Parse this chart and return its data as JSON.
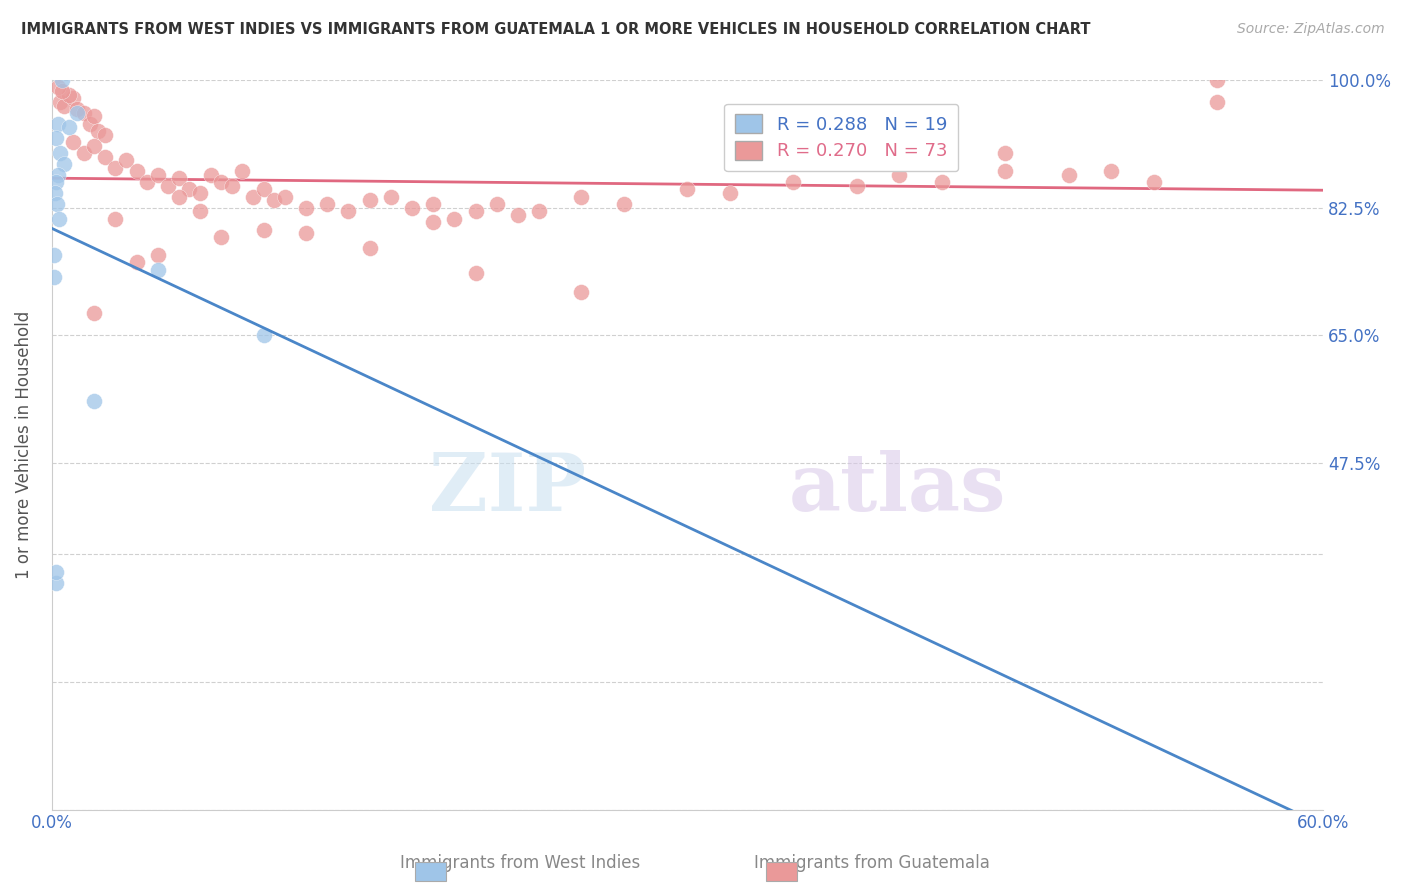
{
  "title": "IMMIGRANTS FROM WEST INDIES VS IMMIGRANTS FROM GUATEMALA 1 OR MORE VEHICLES IN HOUSEHOLD CORRELATION CHART",
  "source": "Source: ZipAtlas.com",
  "ylabel": "1 or more Vehicles in Household",
  "xmin": 0.0,
  "xmax": 60.0,
  "ymin": 0.0,
  "ymax": 100.0,
  "ytick_positions": [
    0.0,
    17.5,
    35.0,
    47.5,
    65.0,
    82.5,
    100.0
  ],
  "ytick_labels_right": [
    "",
    "",
    "",
    "47.5%",
    "65.0%",
    "82.5%",
    "100.0%"
  ],
  "legend_blue_label": "R = 0.288   N = 19",
  "legend_pink_label": "R = 0.270   N = 73",
  "blue_color": "#9fc5e8",
  "pink_color": "#ea9999",
  "blue_line_color": "#4a86c8",
  "pink_line_color": "#e06880",
  "watermark_zip": "ZIP",
  "watermark_atlas": "atlas",
  "bottom_label_blue": "Immigrants from West Indies",
  "bottom_label_pink": "Immigrants from Guatemala",
  "blue_dots_x": [
    0.5,
    0.3,
    0.8,
    1.2,
    0.2,
    0.4,
    0.6,
    0.3,
    0.2,
    0.15,
    0.25,
    0.35,
    0.1,
    0.1,
    10.0,
    5.0,
    2.0,
    0.2,
    0.2
  ],
  "blue_dots_y": [
    100.0,
    94.0,
    93.5,
    95.5,
    92.0,
    90.0,
    88.5,
    87.0,
    86.0,
    84.5,
    83.0,
    81.0,
    76.0,
    73.0,
    65.0,
    74.0,
    56.0,
    31.0,
    32.5
  ],
  "pink_dots_x": [
    0.4,
    0.6,
    1.0,
    1.2,
    1.5,
    1.8,
    2.0,
    2.2,
    2.5,
    0.8,
    0.3,
    0.5,
    1.0,
    1.5,
    2.0,
    2.5,
    3.0,
    3.5,
    4.0,
    4.5,
    5.0,
    5.5,
    6.0,
    6.5,
    7.0,
    7.5,
    8.0,
    8.5,
    9.0,
    9.5,
    10.0,
    10.5,
    11.0,
    12.0,
    13.0,
    14.0,
    15.0,
    16.0,
    17.0,
    18.0,
    19.0,
    20.0,
    21.0,
    22.0,
    23.0,
    25.0,
    27.0,
    30.0,
    32.0,
    35.0,
    38.0,
    40.0,
    42.0,
    45.0,
    48.0,
    50.0,
    52.0,
    55.0,
    7.0,
    10.0,
    15.0,
    20.0,
    25.0,
    12.0,
    18.0,
    8.0,
    5.0,
    3.0,
    6.0,
    4.0,
    2.0,
    55.0,
    45.0
  ],
  "pink_dots_y": [
    97.0,
    96.5,
    97.5,
    96.0,
    95.5,
    94.0,
    95.0,
    93.0,
    92.5,
    98.0,
    99.0,
    98.5,
    91.5,
    90.0,
    91.0,
    89.5,
    88.0,
    89.0,
    87.5,
    86.0,
    87.0,
    85.5,
    86.5,
    85.0,
    84.5,
    87.0,
    86.0,
    85.5,
    87.5,
    84.0,
    85.0,
    83.5,
    84.0,
    82.5,
    83.0,
    82.0,
    83.5,
    84.0,
    82.5,
    83.0,
    81.0,
    82.0,
    83.0,
    81.5,
    82.0,
    84.0,
    83.0,
    85.0,
    84.5,
    86.0,
    85.5,
    87.0,
    86.0,
    87.5,
    87.0,
    87.5,
    86.0,
    100.0,
    82.0,
    79.5,
    77.0,
    73.5,
    71.0,
    79.0,
    80.5,
    78.5,
    76.0,
    81.0,
    84.0,
    75.0,
    68.0,
    97.0,
    90.0
  ]
}
